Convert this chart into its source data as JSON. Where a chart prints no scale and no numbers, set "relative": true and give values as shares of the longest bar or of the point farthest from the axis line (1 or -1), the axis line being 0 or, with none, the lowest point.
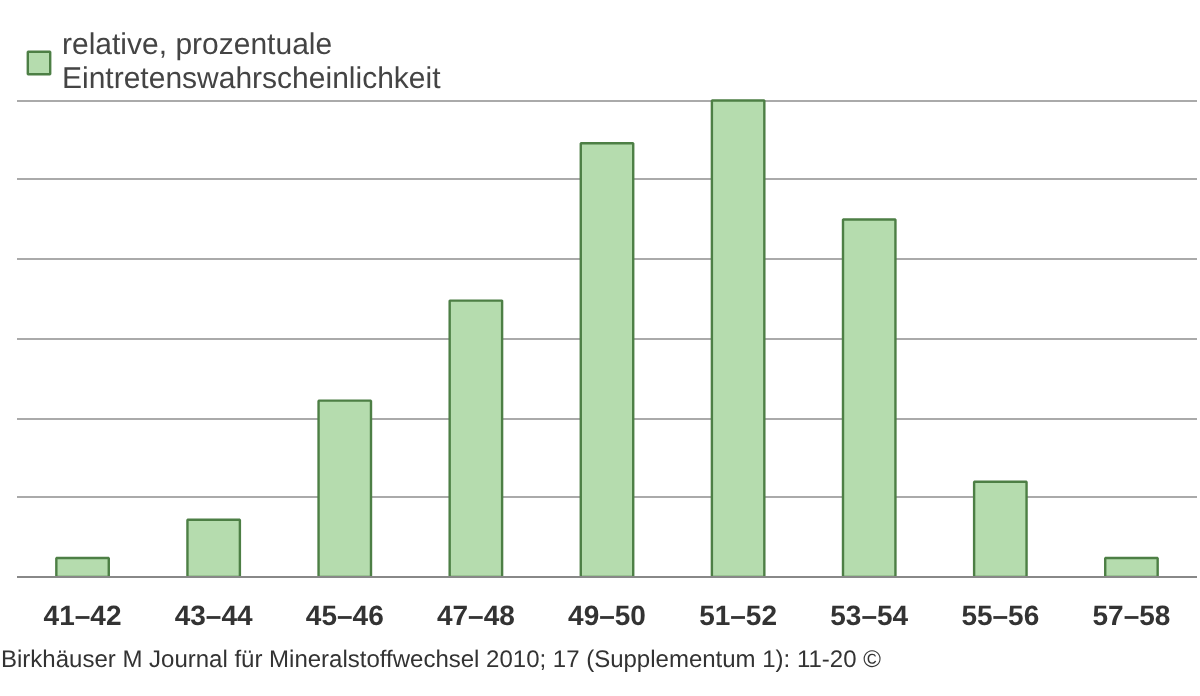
{
  "chart_data": {
    "type": "bar",
    "relative": true,
    "categories": [
      "41–42",
      "43–44",
      "45–46",
      "47–48",
      "49–50",
      "51–52",
      "53–54",
      "55–56",
      "57–58"
    ],
    "series": [
      {
        "name": "relative, prozentuale\nEintretenswahrscheinlichkeit",
        "color": "#b5dcae",
        "values": [
          0.04,
          0.12,
          0.37,
          0.58,
          0.91,
          1.0,
          0.75,
          0.2,
          0.04
        ]
      }
    ],
    "grid": "y",
    "legend": "top left",
    "annotations": [
      "Birkhäuser M Journal für Mineralstoffwechsel 2010; 17 (Supplementum 1): 11-20 ©"
    ]
  }
}
